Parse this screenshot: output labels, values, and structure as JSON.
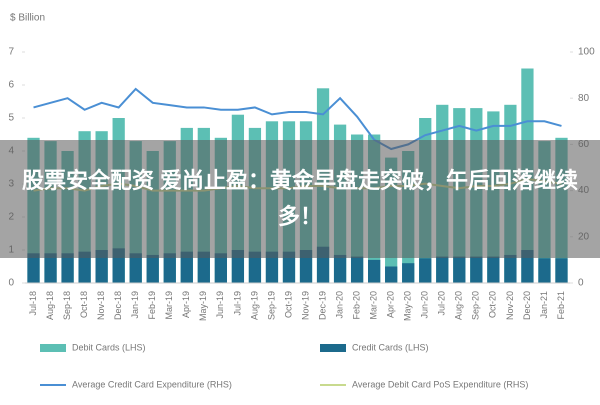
{
  "chart_data": {
    "type": "combo",
    "y_label": "$ Billion",
    "categories": [
      "Jul-18",
      "Aug-18",
      "Sep-18",
      "Oct-18",
      "Nov-18",
      "Dec-18",
      "Jan-19",
      "Feb-19",
      "Mar-19",
      "Apr-19",
      "May-19",
      "Jun-19",
      "Jul-19",
      "Aug-19",
      "Sep-19",
      "Oct-19",
      "Nov-19",
      "Dec-19",
      "Jan-20",
      "Feb-20",
      "Mar-20",
      "Apr-20",
      "May-20",
      "Jun-20",
      "Jul-20",
      "Aug-20",
      "Sep-20",
      "Oct-20",
      "Nov-20",
      "Dec-20",
      "Jan-21",
      "Feb-21"
    ],
    "series": [
      {
        "name": "Debit Cards (LHS)",
        "type": "bar",
        "color": "#5cbfb4",
        "values": [
          4.4,
          4.3,
          4.0,
          4.6,
          4.6,
          5.0,
          4.3,
          4.0,
          4.3,
          4.7,
          4.7,
          4.4,
          5.1,
          4.7,
          4.9,
          4.9,
          4.9,
          5.9,
          4.8,
          4.5,
          4.5,
          3.8,
          4.0,
          5.0,
          5.4,
          5.3,
          5.3,
          5.2,
          5.4,
          6.5,
          4.3,
          4.4
        ]
      },
      {
        "name": "Credit Cards (LHS)",
        "type": "bar",
        "color": "#1c6a8c",
        "values": [
          0.9,
          0.9,
          0.9,
          0.95,
          1.0,
          1.05,
          0.9,
          0.85,
          0.9,
          0.95,
          0.95,
          0.9,
          1.0,
          0.95,
          0.95,
          0.95,
          1.0,
          1.1,
          0.85,
          0.8,
          0.7,
          0.5,
          0.6,
          0.75,
          0.8,
          0.8,
          0.8,
          0.8,
          0.85,
          1.0,
          0.75,
          0.75
        ]
      },
      {
        "name": "Average Credit Card Expenditure (RHS)",
        "type": "line",
        "axis": "y2",
        "color": "#4a8fd4",
        "values": [
          76,
          78,
          80,
          75,
          78,
          76,
          84,
          78,
          77,
          76,
          76,
          75,
          75,
          76,
          73,
          74,
          74,
          73,
          80,
          72,
          62,
          58,
          60,
          64,
          66,
          68,
          66,
          68,
          68,
          70,
          70,
          68
        ]
      },
      {
        "name": "Average Debit Card PoS Expenditure (RHS)",
        "type": "line",
        "axis": "y2",
        "color": "#c8da8e",
        "values": [
          40,
          41,
          41,
          40,
          42,
          43,
          42,
          40,
          40,
          40,
          40,
          41,
          42,
          41,
          41,
          41,
          42,
          42,
          41,
          41,
          41,
          42,
          42,
          43,
          42,
          41,
          42,
          42,
          43,
          45,
          44,
          43
        ]
      }
    ],
    "ylim": [
      0,
      7
    ],
    "yticks": [
      0,
      1,
      2,
      3,
      4,
      5,
      6,
      7
    ],
    "y2lim": [
      0,
      100
    ],
    "y2ticks": [
      0,
      20,
      40,
      60,
      80,
      100
    ],
    "legend": "bottom"
  },
  "banner": "股票安全配资 爱尚止盈：黄金早盘走突破，午后回落继续多！"
}
